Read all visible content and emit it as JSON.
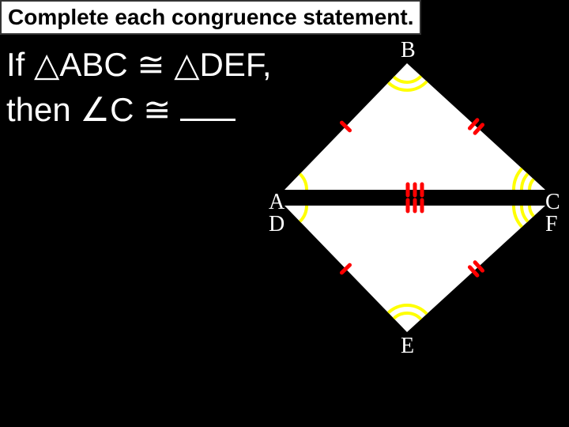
{
  "header": {
    "text": "Complete each congruence statement."
  },
  "statement": {
    "line1_prefix": "If ",
    "tri1": "ABC",
    "congruent": " ≅ ",
    "tri2": "DEF",
    "comma": ",",
    "line2_prefix": "then ",
    "angle_letter": "C",
    "tail": " ≅ "
  },
  "vertices": {
    "B": "B",
    "A": "A",
    "C": "C",
    "D": "D",
    "E": "E",
    "F": "F"
  },
  "diagram": {
    "colors": {
      "triangle_fill": "#ffffff",
      "angle_arc": "#ffff00",
      "tick": "#ff0000",
      "bg": "#000000"
    },
    "upper": {
      "A": [
        20,
        180
      ],
      "B": [
        175,
        20
      ],
      "C": [
        350,
        180
      ]
    },
    "lower": {
      "D": [
        20,
        200
      ],
      "E": [
        175,
        360
      ],
      "F": [
        350,
        200
      ]
    },
    "arc_radii": {
      "single": [
        28
      ],
      "double": [
        24,
        34
      ],
      "triple": [
        20,
        30,
        40
      ]
    },
    "tick_len": 14,
    "stroke_width": {
      "triangle": 0,
      "arc": 4,
      "tick": 5
    }
  }
}
